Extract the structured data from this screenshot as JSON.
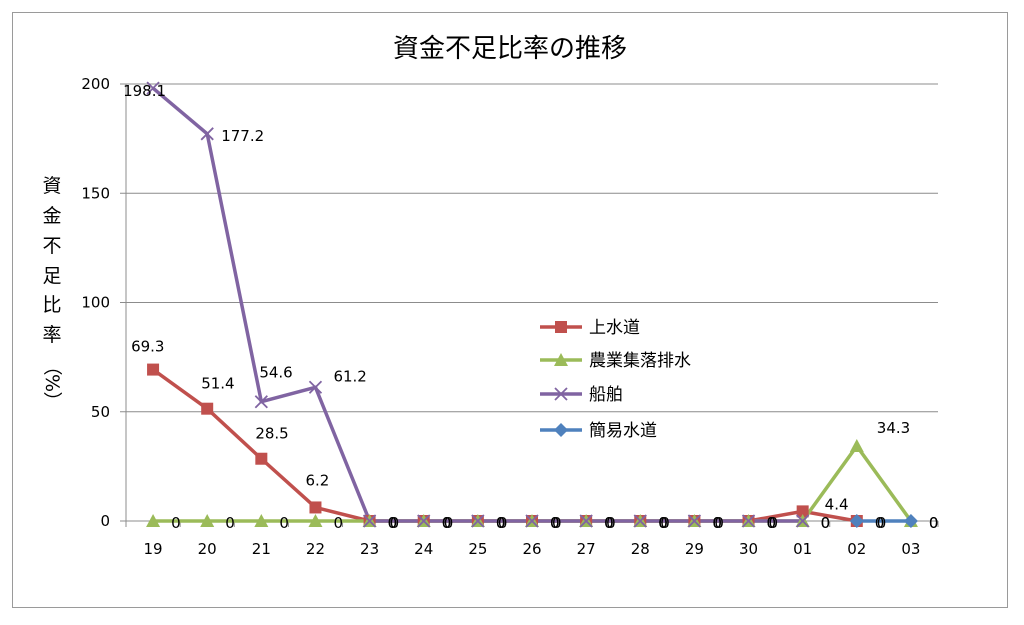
{
  "chart_data": {
    "type": "line",
    "title": "資金不足比率の推移",
    "ylabel_chars": [
      "資",
      "金",
      "不",
      "足",
      "比",
      "率",
      "（",
      "%",
      "）"
    ],
    "xlabel": "",
    "categories": [
      "19",
      "20",
      "21",
      "22",
      "23",
      "24",
      "25",
      "26",
      "27",
      "28",
      "29",
      "30",
      "01",
      "02",
      "03"
    ],
    "ylim": [
      0,
      200
    ],
    "yticks": [
      0,
      50,
      100,
      150,
      200
    ],
    "grid": true,
    "legend_position": "right",
    "series": [
      {
        "name": "上水道",
        "color": "#c0504d",
        "marker": "square",
        "x": [
          0,
          1,
          2,
          3,
          4,
          5,
          6,
          7,
          8,
          9,
          10,
          11,
          12,
          13
        ],
        "values": [
          69.3,
          51.4,
          28.5,
          6.2,
          0,
          0,
          0,
          0,
          0,
          0,
          0,
          0,
          4.4,
          0
        ],
        "labels": [
          "69.3",
          "51.4",
          "28.5",
          "6.2",
          "0",
          "0",
          "0",
          "0",
          "0",
          "0",
          "0",
          "0",
          "4.4",
          "0"
        ]
      },
      {
        "name": "農業集落排水",
        "color": "#9bbb59",
        "marker": "triangle",
        "x": [
          0,
          1,
          2,
          3,
          4,
          5,
          6,
          7,
          8,
          9,
          10,
          11,
          12,
          13,
          14
        ],
        "values": [
          0,
          0,
          0,
          0,
          0,
          0,
          0,
          0,
          0,
          0,
          0,
          0,
          0,
          34.3,
          0
        ],
        "labels": [
          "0",
          "0",
          "0",
          "0",
          "0",
          "0",
          "0",
          "0",
          "0",
          "0",
          "0",
          "0",
          "0",
          "34.3",
          "0"
        ]
      },
      {
        "name": "船舶",
        "color": "#8064a2",
        "marker": "x",
        "x": [
          0,
          1,
          2,
          3,
          4,
          5,
          6,
          7,
          8,
          9,
          10,
          11,
          12
        ],
        "values": [
          198.1,
          177.2,
          54.6,
          61.2,
          0,
          0,
          0,
          0,
          0,
          0,
          0,
          0,
          0
        ],
        "labels": [
          "198.1",
          "177.2",
          "54.6",
          "61.2",
          "0",
          "0",
          "0",
          "0",
          "0",
          "0",
          "0",
          "0",
          "0"
        ]
      },
      {
        "name": "簡易水道",
        "color": "#4f81bd",
        "marker": "diamond",
        "x": [
          13,
          14
        ],
        "values": [
          0,
          0
        ],
        "labels": [
          "0",
          "0"
        ]
      }
    ]
  }
}
